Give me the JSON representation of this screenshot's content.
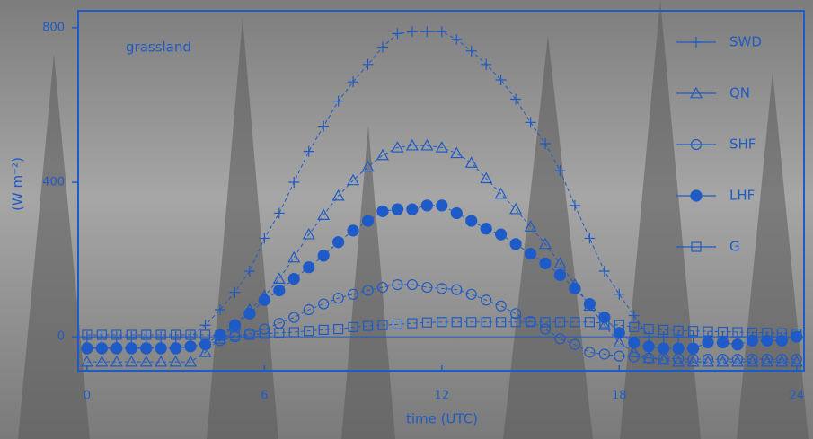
{
  "chart_data": {
    "type": "line",
    "annotation": "grassland",
    "x_label": "time (UTC)",
    "y_label": "(W m⁻²)",
    "color": "#1e5bc6",
    "xlim": [
      -0.3,
      24.25
    ],
    "ylim": [
      -88,
      844
    ],
    "xticks": [
      0,
      6,
      12,
      18,
      24
    ],
    "yticks": [
      0,
      400,
      800
    ],
    "x": [
      0,
      0.5,
      1,
      1.5,
      2,
      2.5,
      3,
      3.5,
      4,
      4.5,
      5,
      5.5,
      6,
      6.5,
      7,
      7.5,
      8,
      8.5,
      9,
      9.5,
      10,
      10.5,
      11,
      11.5,
      12,
      12.5,
      13,
      13.5,
      14,
      14.5,
      15,
      15.5,
      16,
      16.5,
      17,
      17.5,
      18,
      18.5,
      19,
      19.5,
      20,
      20.5,
      21,
      21.5,
      22,
      22.5,
      23,
      23.5,
      24
    ],
    "series": [
      {
        "name": "SWD",
        "marker": "plus",
        "values": [
          0,
          0,
          0,
          0,
          0,
          0,
          0,
          0,
          30,
          70,
          115,
          170,
          255,
          320,
          400,
          480,
          545,
          610,
          660,
          705,
          750,
          785,
          790,
          790,
          790,
          770,
          740,
          705,
          665,
          615,
          555,
          500,
          430,
          340,
          255,
          170,
          110,
          55,
          0,
          0,
          0,
          0,
          0,
          0,
          0,
          0,
          0,
          0,
          0
        ]
      },
      {
        "name": "QN",
        "marker": "triangle",
        "values": [
          -65,
          -65,
          -65,
          -65,
          -65,
          -65,
          -65,
          -65,
          -40,
          -5,
          30,
          70,
          105,
          150,
          205,
          265,
          315,
          365,
          405,
          440,
          470,
          490,
          495,
          495,
          490,
          475,
          450,
          410,
          370,
          330,
          285,
          240,
          190,
          135,
          80,
          30,
          -15,
          -40,
          -55,
          -60,
          -65,
          -65,
          -65,
          -65,
          -65,
          -65,
          -65,
          -65,
          -65
        ]
      },
      {
        "name": "SHF",
        "marker": "circle",
        "values": [
          -28,
          -28,
          -28,
          -28,
          -28,
          -28,
          -28,
          -25,
          -20,
          -10,
          0,
          8,
          20,
          35,
          50,
          70,
          85,
          100,
          110,
          120,
          128,
          135,
          135,
          128,
          125,
          122,
          110,
          95,
          80,
          60,
          40,
          20,
          -5,
          -20,
          -40,
          -45,
          -50,
          -52,
          -55,
          -56,
          -57,
          -58,
          -58,
          -58,
          -58,
          -58,
          -58,
          -58,
          -58
        ]
      },
      {
        "name": "LHF",
        "marker": "disc",
        "values": [
          -30,
          -30,
          -30,
          -30,
          -30,
          -30,
          -30,
          -25,
          -20,
          5,
          30,
          60,
          95,
          120,
          150,
          180,
          210,
          245,
          275,
          300,
          325,
          330,
          330,
          340,
          340,
          320,
          300,
          280,
          265,
          240,
          215,
          190,
          160,
          125,
          85,
          50,
          10,
          -15,
          -25,
          -30,
          -30,
          -30,
          -15,
          -15,
          -20,
          -10,
          -10,
          -10,
          0
        ]
      },
      {
        "name": "G",
        "marker": "square",
        "values": [
          5,
          5,
          5,
          5,
          5,
          5,
          5,
          5,
          5,
          3,
          3,
          5,
          8,
          10,
          12,
          15,
          18,
          20,
          25,
          28,
          30,
          32,
          35,
          37,
          38,
          38,
          38,
          38,
          38,
          38,
          38,
          38,
          38,
          38,
          38,
          35,
          30,
          25,
          20,
          18,
          16,
          15,
          14,
          13,
          12,
          11,
          10,
          9,
          8
        ]
      }
    ]
  }
}
